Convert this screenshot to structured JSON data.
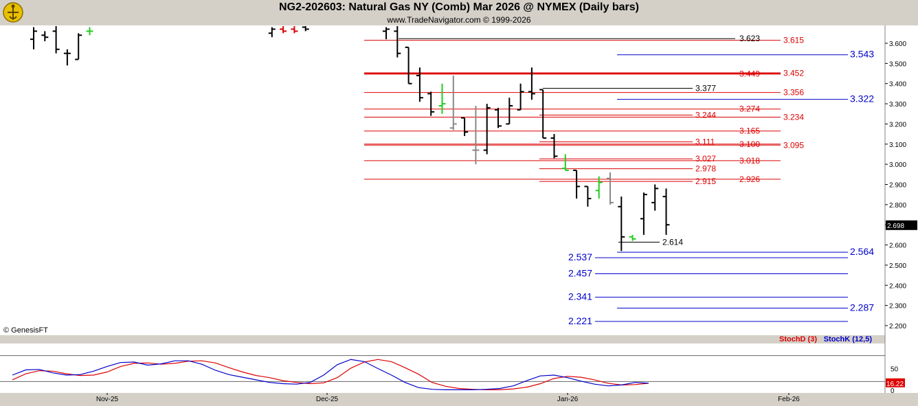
{
  "header": {
    "title": "NG2-202603:  Natural Gas NY (Comb) Mar 2026 @ NYMEX  (Daily bars)",
    "subtitle": "www.TradeNavigator.com © 1999-2026"
  },
  "copyright": "© GenesisFT",
  "colors": {
    "bar_up": "#000000",
    "bar_green": "#22cc22",
    "bar_gray": "#888888",
    "red_level": "#dd0000",
    "blue_level": "#0000cc",
    "stoch_d": "#dd0000",
    "stoch_k": "#0000cc"
  },
  "chart_data": [
    {
      "type": "ohlc",
      "title": "NG2-202603:  Natural Gas NY (Comb) Mar 2026 @ NYMEX  (Daily bars)",
      "ylim": [
        2.15,
        3.67
      ],
      "y_ticks": [
        "3.600",
        "3.500",
        "3.400",
        "3.300",
        "3.200",
        "3.100",
        "3.000",
        "2.900",
        "2.800",
        "2.700",
        "2.600",
        "2.500",
        "2.400",
        "2.300",
        "2.200"
      ],
      "x_ticks": [
        "Nov-25",
        "Dec-25",
        "Jan-26",
        "Feb-26"
      ],
      "last_price": "2.698",
      "bars": [
        {
          "o": 3.62,
          "h": 3.68,
          "l": 3.57,
          "c": 3.66,
          "col": "k"
        },
        {
          "o": 3.64,
          "h": 3.66,
          "l": 3.61,
          "c": 3.63,
          "col": "k"
        },
        {
          "o": 3.66,
          "h": 3.69,
          "l": 3.55,
          "c": 3.57,
          "col": "k"
        },
        {
          "o": 3.55,
          "h": 3.57,
          "l": 3.49,
          "c": 3.55,
          "col": "k"
        },
        {
          "o": 3.52,
          "h": 3.65,
          "l": 3.52,
          "c": 3.64,
          "col": "k"
        },
        {
          "o": 3.66,
          "h": 3.68,
          "l": 3.64,
          "c": 3.66,
          "col": "g"
        },
        {
          "o": 3.65,
          "h": 3.68,
          "l": 3.63,
          "c": 3.67,
          "col": "k"
        },
        {
          "o": 3.67,
          "h": 3.69,
          "l": 3.65,
          "c": 3.66,
          "col": "r"
        },
        {
          "o": 3.67,
          "h": 3.69,
          "l": 3.65,
          "c": 3.66,
          "col": "r"
        },
        {
          "o": 3.68,
          "h": 3.7,
          "l": 3.66,
          "c": 3.67,
          "col": "k"
        },
        {
          "o": 3.66,
          "h": 3.68,
          "l": 3.62,
          "c": 3.67,
          "col": "k"
        },
        {
          "o": 3.66,
          "h": 3.69,
          "l": 3.53,
          "c": 3.55,
          "col": "k"
        },
        {
          "o": 3.58,
          "h": 3.58,
          "l": 3.4,
          "c": 3.4,
          "col": "k"
        },
        {
          "o": 3.44,
          "h": 3.48,
          "l": 3.31,
          "c": 3.33,
          "col": "k"
        },
        {
          "o": 3.35,
          "h": 3.36,
          "l": 3.24,
          "c": 3.26,
          "col": "k"
        },
        {
          "o": 3.29,
          "h": 3.4,
          "l": 3.25,
          "c": 3.3,
          "col": "g"
        },
        {
          "o": 3.18,
          "h": 3.44,
          "l": 3.17,
          "c": 3.2,
          "col": "a"
        },
        {
          "o": 3.23,
          "h": 3.23,
          "l": 3.14,
          "c": 3.16,
          "col": "k"
        },
        {
          "o": 3.07,
          "h": 3.29,
          "l": 3.0,
          "c": 3.07,
          "col": "a"
        },
        {
          "o": 3.07,
          "h": 3.3,
          "l": 3.05,
          "c": 3.28,
          "col": "k"
        },
        {
          "o": 3.27,
          "h": 3.28,
          "l": 3.18,
          "c": 3.19,
          "col": "k"
        },
        {
          "o": 3.2,
          "h": 3.33,
          "l": 3.2,
          "c": 3.29,
          "col": "k"
        },
        {
          "o": 3.27,
          "h": 3.4,
          "l": 3.27,
          "c": 3.36,
          "col": "k"
        },
        {
          "o": 3.36,
          "h": 3.48,
          "l": 3.32,
          "c": 3.35,
          "col": "k"
        },
        {
          "o": 3.37,
          "h": 3.37,
          "l": 3.13,
          "c": 3.13,
          "col": "k"
        },
        {
          "o": 3.13,
          "h": 3.15,
          "l": 3.03,
          "c": 3.04,
          "col": "k"
        },
        {
          "o": 2.98,
          "h": 3.05,
          "l": 2.97,
          "c": 2.97,
          "col": "g"
        },
        {
          "o": 2.97,
          "h": 2.97,
          "l": 2.83,
          "c": 2.89,
          "col": "k"
        },
        {
          "o": 2.89,
          "h": 2.89,
          "l": 2.79,
          "c": 2.83,
          "col": "k"
        },
        {
          "o": 2.87,
          "h": 2.94,
          "l": 2.83,
          "c": 2.91,
          "col": "g"
        },
        {
          "o": 2.93,
          "h": 2.96,
          "l": 2.8,
          "c": 2.81,
          "col": "a"
        },
        {
          "o": 2.79,
          "h": 2.84,
          "l": 2.57,
          "c": 2.64,
          "col": "k"
        },
        {
          "o": 2.64,
          "h": 2.65,
          "l": 2.62,
          "c": 2.63,
          "col": "g"
        },
        {
          "o": 2.73,
          "h": 2.86,
          "l": 2.65,
          "c": 2.85,
          "col": "k"
        },
        {
          "o": 2.81,
          "h": 2.9,
          "l": 2.77,
          "c": 2.88,
          "col": "k"
        },
        {
          "o": 2.84,
          "h": 2.88,
          "l": 2.65,
          "c": 2.7,
          "col": "k"
        }
      ],
      "levels": [
        {
          "value": 3.615,
          "label": "3.615",
          "color": "red",
          "label_pos": "right"
        },
        {
          "value": 3.623,
          "label": "3.623",
          "color": "black",
          "label_pos": "mid"
        },
        {
          "value": 3.543,
          "label": "3.543",
          "color": "blue",
          "label_pos": "far"
        },
        {
          "value": 3.452,
          "label": "3.452",
          "color": "red",
          "label_pos": "right"
        },
        {
          "value": 3.449,
          "label": "3.449",
          "color": "red",
          "label_pos": "mid"
        },
        {
          "value": 3.377,
          "label": "3.377",
          "color": "black",
          "label_pos": "left"
        },
        {
          "value": 3.356,
          "label": "3.356",
          "color": "red",
          "label_pos": "right"
        },
        {
          "value": 3.322,
          "label": "3.322",
          "color": "blue",
          "label_pos": "far"
        },
        {
          "value": 3.274,
          "label": "3.274",
          "color": "red",
          "label_pos": "mid"
        },
        {
          "value": 3.244,
          "label": "3.244",
          "color": "red",
          "label_pos": "left"
        },
        {
          "value": 3.234,
          "label": "3.234",
          "color": "red",
          "label_pos": "right"
        },
        {
          "value": 3.165,
          "label": "3.165",
          "color": "red",
          "label_pos": "mid"
        },
        {
          "value": 3.111,
          "label": "3.111",
          "color": "red",
          "label_pos": "left"
        },
        {
          "value": 3.1,
          "label": "3.100",
          "color": "red",
          "label_pos": "mid"
        },
        {
          "value": 3.095,
          "label": "3.095",
          "color": "red",
          "label_pos": "right"
        },
        {
          "value": 3.027,
          "label": "3.027",
          "color": "red",
          "label_pos": "left"
        },
        {
          "value": 3.018,
          "label": "3.018",
          "color": "red",
          "label_pos": "mid"
        },
        {
          "value": 2.978,
          "label": "2.978",
          "color": "red",
          "label_pos": "left"
        },
        {
          "value": 2.926,
          "label": "2.926",
          "color": "red",
          "label_pos": "mid"
        },
        {
          "value": 2.915,
          "label": "2.915",
          "color": "red",
          "label_pos": "left"
        },
        {
          "value": 2.614,
          "label": "2.614",
          "color": "black",
          "label_pos": "left"
        },
        {
          "value": 2.564,
          "label": "2.564",
          "color": "blue",
          "label_pos": "far"
        },
        {
          "value": 2.537,
          "label": "2.537",
          "color": "blue",
          "label_pos": "before"
        },
        {
          "value": 2.457,
          "label": "2.457",
          "color": "blue",
          "label_pos": "before"
        },
        {
          "value": 2.341,
          "label": "2.341",
          "color": "blue",
          "label_pos": "before"
        },
        {
          "value": 2.287,
          "label": "2.287",
          "color": "blue",
          "label_pos": "far"
        },
        {
          "value": 2.221,
          "label": "2.221",
          "color": "blue",
          "label_pos": "before"
        }
      ]
    },
    {
      "type": "line",
      "title": "",
      "ylim": [
        0,
        100
      ],
      "y_ticks": [
        "50",
        "0"
      ],
      "last_value": "16.22",
      "series": [
        {
          "name": "StochD (3)",
          "color": "#dd0000",
          "values": [
            24,
            38,
            45,
            44,
            38,
            34,
            35,
            42,
            55,
            62,
            63,
            60,
            62,
            67,
            68,
            63,
            52,
            42,
            34,
            29,
            22,
            18,
            15,
            17,
            29,
            51,
            65,
            71,
            66,
            52,
            37,
            18,
            9,
            4,
            2,
            1,
            1,
            3,
            7,
            15,
            27,
            32,
            30,
            24,
            16,
            12,
            13,
            16
          ]
        },
        {
          "name": "StochK (12,5)",
          "color": "#0000cc",
          "values": [
            35,
            47,
            48,
            40,
            35,
            36,
            44,
            55,
            64,
            65,
            58,
            61,
            68,
            68,
            60,
            46,
            36,
            30,
            24,
            18,
            15,
            14,
            18,
            35,
            59,
            71,
            66,
            50,
            35,
            18,
            6,
            2,
            1,
            1,
            1,
            2,
            4,
            10,
            22,
            33,
            35,
            29,
            21,
            14,
            10,
            12,
            18,
            16
          ]
        }
      ]
    }
  ]
}
